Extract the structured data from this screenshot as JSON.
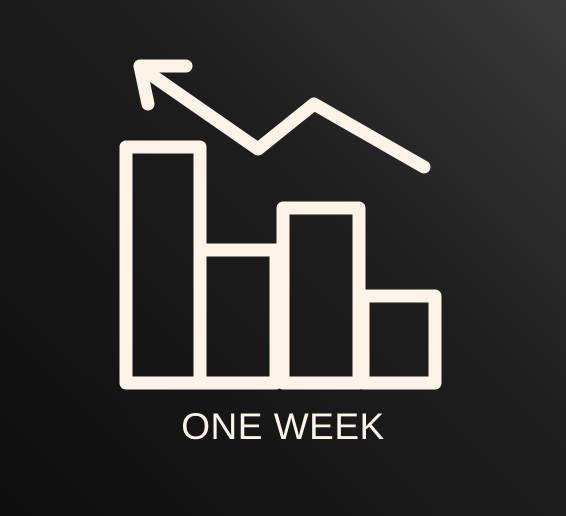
{
  "caption": "ONE WEEK",
  "icon": "bar-chart-trend-arrow-icon",
  "colors": {
    "foreground": "#fdf3e6",
    "background_dark": "#0e0e0e",
    "background_light": "#3a3a3a"
  }
}
